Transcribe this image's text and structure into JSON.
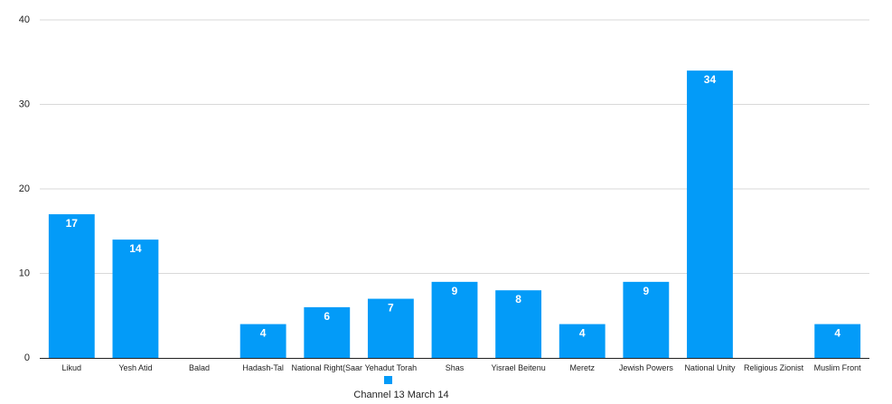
{
  "chart_data": {
    "type": "bar",
    "categories": [
      "Likud",
      "Yesh Atid",
      "Balad",
      "Hadash-Tal",
      "National Right(Saar",
      "Yehadut Torah",
      "Shas",
      "Yisrael Beitenu",
      "Meretz",
      "Jewish Powers",
      "National Unity",
      "Religious Zionist",
      "Muslim Front"
    ],
    "series": [
      {
        "name": "Channel 13  March 14",
        "values": [
          17,
          14,
          0,
          4,
          6,
          7,
          9,
          8,
          4,
          9,
          34,
          0,
          4
        ],
        "color": "#039BF8"
      }
    ],
    "title": "",
    "xlabel": "",
    "ylabel": "",
    "ylim": [
      0,
      40
    ],
    "yticks": [
      0,
      10,
      20,
      30,
      40
    ],
    "grid": true,
    "legend_position": "bottom-center"
  }
}
